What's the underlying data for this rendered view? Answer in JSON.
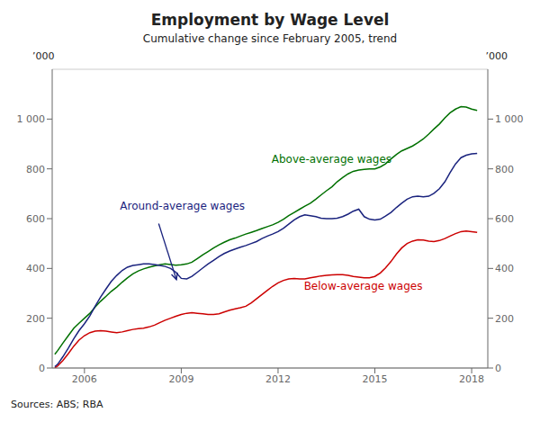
{
  "chart_data": {
    "type": "line",
    "title": "Employment by Wage Level",
    "subtitle": "Cumulative change since February 2005, trend",
    "y_label": "’000",
    "y2_label": "’000",
    "annotations": [
      "Sources: ABS; RBA"
    ],
    "x": [
      2005.08,
      2005.17,
      2005.33,
      2005.5,
      2005.67,
      2005.83,
      2006.0,
      2006.17,
      2006.33,
      2006.5,
      2006.67,
      2006.83,
      2007.0,
      2007.17,
      2007.33,
      2007.5,
      2007.67,
      2007.83,
      2008.0,
      2008.17,
      2008.33,
      2008.5,
      2008.67,
      2008.83,
      2009.0,
      2009.17,
      2009.33,
      2009.5,
      2009.67,
      2009.83,
      2010.0,
      2010.17,
      2010.33,
      2010.5,
      2010.67,
      2010.83,
      2011.0,
      2011.17,
      2011.33,
      2011.5,
      2011.67,
      2011.83,
      2012.0,
      2012.17,
      2012.33,
      2012.5,
      2012.67,
      2012.83,
      2013.0,
      2013.17,
      2013.33,
      2013.5,
      2013.67,
      2013.83,
      2014.0,
      2014.17,
      2014.33,
      2014.5,
      2014.67,
      2014.83,
      2015.0,
      2015.17,
      2015.33,
      2015.5,
      2015.67,
      2015.83,
      2016.0,
      2016.17,
      2016.33,
      2016.5,
      2016.67,
      2016.83,
      2017.0,
      2017.17,
      2017.33,
      2017.5,
      2017.67,
      2017.83,
      2018.0,
      2018.17
    ],
    "series": [
      {
        "name": "Above-average wages",
        "color": "#007000",
        "values": [
          55,
          70,
          100,
          130,
          160,
          180,
          200,
          220,
          245,
          268,
          288,
          308,
          325,
          345,
          362,
          378,
          390,
          398,
          405,
          410,
          415,
          418,
          416,
          413,
          415,
          418,
          425,
          440,
          455,
          468,
          482,
          495,
          505,
          515,
          522,
          530,
          538,
          545,
          552,
          560,
          568,
          575,
          585,
          598,
          612,
          625,
          638,
          650,
          662,
          678,
          695,
          712,
          728,
          748,
          765,
          780,
          790,
          795,
          798,
          800,
          800,
          808,
          820,
          840,
          858,
          872,
          882,
          892,
          905,
          920,
          940,
          960,
          980,
          1005,
          1025,
          1040,
          1050,
          1048,
          1040,
          1035
        ]
      },
      {
        "name": "Around-average wages",
        "color": "#1a237e",
        "values": [
          5,
          15,
          45,
          80,
          118,
          150,
          178,
          210,
          248,
          285,
          318,
          348,
          372,
          392,
          405,
          412,
          415,
          418,
          418,
          416,
          412,
          408,
          400,
          385,
          360,
          358,
          368,
          385,
          402,
          418,
          432,
          448,
          460,
          470,
          478,
          485,
          492,
          500,
          508,
          520,
          530,
          538,
          548,
          562,
          578,
          595,
          608,
          615,
          612,
          608,
          602,
          600,
          600,
          602,
          608,
          618,
          630,
          638,
          608,
          598,
          595,
          598,
          610,
          625,
          645,
          662,
          678,
          688,
          690,
          688,
          690,
          702,
          720,
          748,
          785,
          820,
          845,
          855,
          860,
          862
        ]
      },
      {
        "name": "Below-average wages",
        "color": "#cc0000",
        "values": [
          0,
          8,
          30,
          58,
          88,
          112,
          130,
          142,
          148,
          150,
          148,
          145,
          142,
          145,
          150,
          155,
          158,
          160,
          165,
          172,
          182,
          192,
          200,
          208,
          215,
          220,
          222,
          220,
          218,
          215,
          215,
          218,
          225,
          232,
          238,
          242,
          248,
          262,
          278,
          295,
          312,
          328,
          342,
          352,
          358,
          360,
          358,
          358,
          362,
          366,
          370,
          372,
          374,
          375,
          375,
          372,
          368,
          365,
          362,
          362,
          368,
          382,
          402,
          428,
          458,
          482,
          500,
          510,
          515,
          514,
          510,
          508,
          512,
          520,
          530,
          540,
          548,
          550,
          548,
          545
        ]
      }
    ],
    "xlim": [
      2005.0,
      2018.5
    ],
    "xticks": [
      2006,
      2009,
      2012,
      2015,
      2018
    ],
    "ylim": [
      0,
      1200
    ],
    "yticks": [
      0,
      200,
      400,
      600,
      800,
      {
        "value": 1000,
        "label": "1 000"
      }
    ],
    "y2lim": [
      0,
      1200
    ],
    "y2ticks": [
      0,
      200,
      400,
      600,
      800,
      {
        "value": 1000,
        "label": "1 000"
      }
    ],
    "grid": true
  }
}
